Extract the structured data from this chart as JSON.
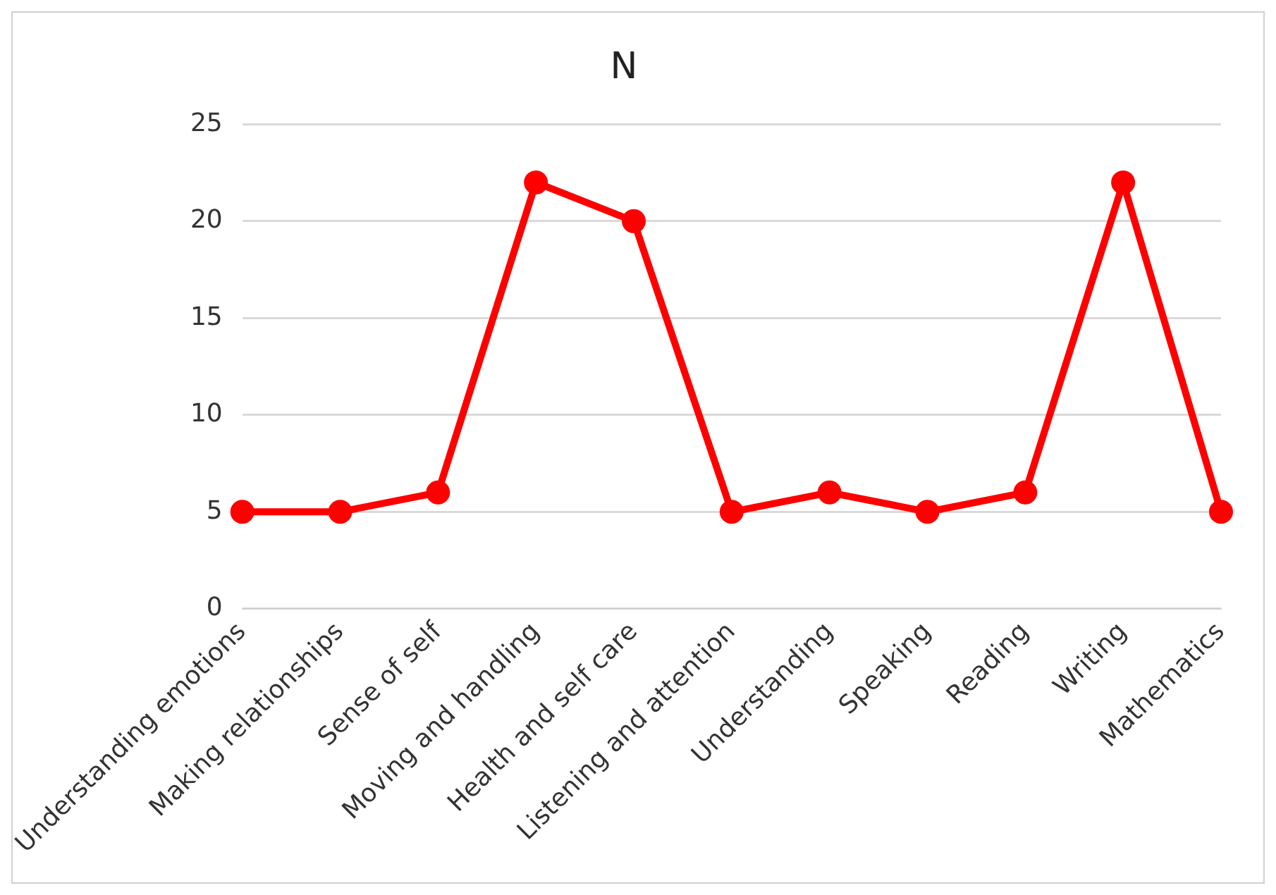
{
  "chart_data": {
    "type": "line",
    "title": "N",
    "categories": [
      "Understanding emotions",
      "Making relationships",
      "Sense of self",
      "Moving and handling",
      "Health and self care",
      "Listening and attention",
      "Understanding",
      "Speaking",
      "Reading",
      "Writing",
      "Mathematics"
    ],
    "series": [
      {
        "color": "#ff0000",
        "values": [
          5,
          5,
          6,
          22,
          20,
          5,
          6,
          5,
          6,
          22,
          5
        ]
      }
    ],
    "ylim": [
      0,
      25
    ],
    "yticks": [
      0,
      5,
      10,
      15,
      20,
      25
    ],
    "grid": "y",
    "legend": false,
    "marker": "circle",
    "line_style": "solid"
  }
}
